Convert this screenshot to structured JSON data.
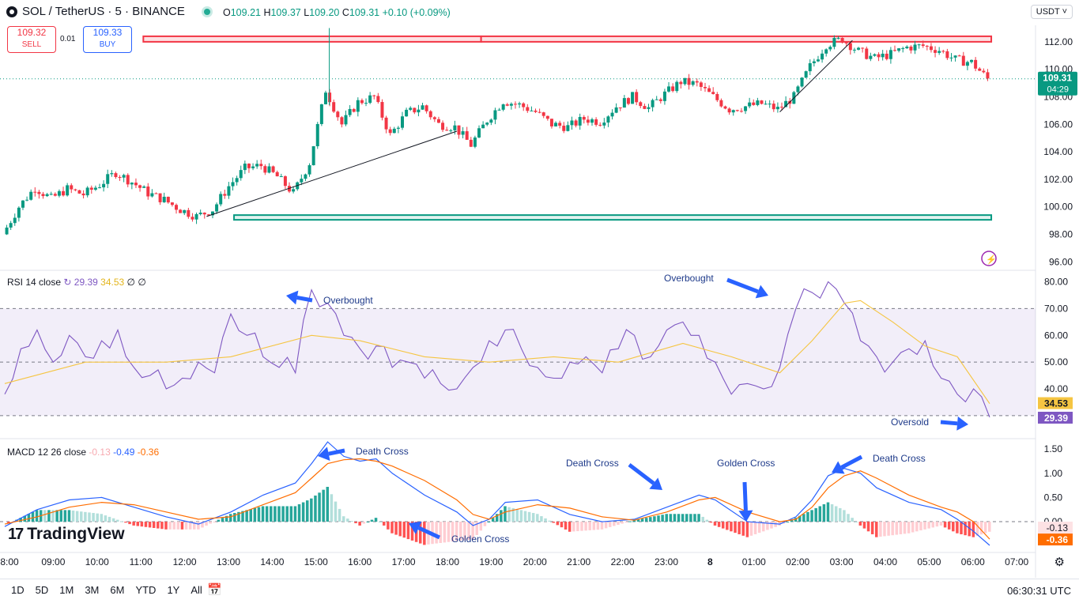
{
  "header": {
    "symbol": "SOL / TetherUS · 5 · BINANCE",
    "o_label": "O",
    "o": "109.21",
    "h_label": "H",
    "h": "109.37",
    "l_label": "L",
    "l": "109.20",
    "c_label": "C",
    "c": "109.31",
    "change": "+0.10 (+0.09%)",
    "currency": "USDT ˅"
  },
  "trade": {
    "sell_price": "109.32",
    "sell_label": "SELL",
    "spread": "0.01",
    "buy_price": "109.33",
    "buy_label": "BUY"
  },
  "price_tag": {
    "price": "109.31",
    "countdown": "04:29"
  },
  "rsi_header": {
    "title": "RSI 14 close",
    "rsi": "29.39",
    "ma": "34.53",
    "extra": "∅ ∅"
  },
  "macd_header": {
    "title": "MACD 12 26 close",
    "hist": "-0.13",
    "macd": "-0.49",
    "signal": "-0.36"
  },
  "logo": "TradingView",
  "ranges": [
    "1D",
    "5D",
    "1M",
    "3M",
    "6M",
    "YTD",
    "1Y",
    "All"
  ],
  "clock": "06:30:31 UTC",
  "colors": {
    "up": "#089981",
    "down": "#f23645",
    "rsi": "#7e57c2",
    "rsi_ma": "#f5c542",
    "macd": "#2962ff",
    "signal": "#ff6d00",
    "annotation": "#2962ff"
  },
  "chart_data": {
    "type": "candlestick",
    "price_axis": {
      "ticks": [
        "112.00",
        "110.00",
        "108.00",
        "106.00",
        "104.00",
        "102.00",
        "100.00",
        "98.00",
        "96.00"
      ],
      "ylim": [
        95.5,
        113.2
      ]
    },
    "time_axis": [
      "8:00",
      "09:00",
      "10:00",
      "11:00",
      "12:00",
      "13:00",
      "14:00",
      "15:00",
      "16:00",
      "17:00",
      "18:00",
      "19:00",
      "20:00",
      "21:00",
      "22:00",
      "23:00",
      "8",
      "01:00",
      "02:00",
      "03:00",
      "04:00",
      "05:00",
      "06:00",
      "07:00"
    ],
    "price_path": [
      [
        0,
        98.0
      ],
      [
        1,
        100.0
      ],
      [
        2,
        101.4
      ],
      [
        3,
        100.6
      ],
      [
        4,
        101.3
      ],
      [
        5,
        100.9
      ],
      [
        6,
        101.6
      ],
      [
        7,
        102.5
      ],
      [
        8,
        101.8
      ],
      [
        9,
        101.0
      ],
      [
        10,
        100.5
      ],
      [
        11,
        99.8
      ],
      [
        12,
        99.3
      ],
      [
        13,
        99.8
      ],
      [
        14,
        101.5
      ],
      [
        15,
        102.8
      ],
      [
        16,
        103.0
      ],
      [
        17,
        102.2
      ],
      [
        18,
        101.0
      ],
      [
        19,
        103.2
      ],
      [
        20,
        108.5
      ],
      [
        21,
        106.0
      ],
      [
        22,
        107.6
      ],
      [
        23,
        108.0
      ],
      [
        24,
        105.2
      ],
      [
        25,
        106.8
      ],
      [
        26,
        107.3
      ],
      [
        27,
        106.0
      ],
      [
        28,
        105.8
      ],
      [
        29,
        104.5
      ],
      [
        30,
        106.3
      ],
      [
        31,
        107.7
      ],
      [
        32,
        107.4
      ],
      [
        33,
        106.9
      ],
      [
        34,
        106.0
      ],
      [
        35,
        105.8
      ],
      [
        36,
        106.4
      ],
      [
        37,
        106.2
      ],
      [
        38,
        107.3
      ],
      [
        39,
        108.0
      ],
      [
        40,
        107.2
      ],
      [
        41,
        108.2
      ],
      [
        42,
        109.1
      ],
      [
        43,
        108.9
      ],
      [
        44,
        108.0
      ],
      [
        45,
        107.1
      ],
      [
        46,
        107.3
      ],
      [
        47,
        107.5
      ],
      [
        48,
        107.1
      ],
      [
        49,
        108.0
      ],
      [
        50,
        110.2
      ],
      [
        51,
        111.8
      ],
      [
        52,
        112.2
      ],
      [
        53,
        111.3
      ],
      [
        54,
        110.8
      ],
      [
        55,
        111.1
      ],
      [
        56,
        111.6
      ],
      [
        57,
        111.7
      ],
      [
        58,
        111.4
      ],
      [
        59,
        110.7
      ],
      [
        60,
        110.5
      ],
      [
        61,
        109.3
      ]
    ],
    "levels": [
      {
        "name": "resistance",
        "low": 112.0,
        "high": 112.4
      },
      {
        "name": "support",
        "low": 99.1,
        "high": 99.4
      }
    ],
    "trendlines": [
      {
        "from": [
          12.5,
          99.3
        ],
        "to": [
          28.0,
          105.5
        ]
      },
      {
        "from": [
          48.0,
          106.9
        ],
        "to": [
          52.5,
          112.1
        ]
      }
    ],
    "current_price": 109.31,
    "rsi": {
      "ticks": [
        "80.00",
        "70.00",
        "60.00",
        "50.00",
        "40.00"
      ],
      "band": [
        30,
        70
      ],
      "ylim": [
        22,
        84
      ],
      "values": [
        [
          0,
          38
        ],
        [
          1,
          55
        ],
        [
          2,
          62
        ],
        [
          3,
          50
        ],
        [
          4,
          60
        ],
        [
          5,
          52
        ],
        [
          6,
          58
        ],
        [
          7,
          62
        ],
        [
          8,
          48
        ],
        [
          9,
          45
        ],
        [
          10,
          40
        ],
        [
          11,
          44
        ],
        [
          12,
          50
        ],
        [
          13,
          46
        ],
        [
          14,
          68
        ],
        [
          15,
          60
        ],
        [
          16,
          52
        ],
        [
          17,
          48
        ],
        [
          18,
          46
        ],
        [
          19,
          77
        ],
        [
          20,
          72
        ],
        [
          21,
          60
        ],
        [
          22,
          55
        ],
        [
          23,
          56
        ],
        [
          24,
          48
        ],
        [
          25,
          50
        ],
        [
          26,
          44
        ],
        [
          27,
          42
        ],
        [
          28,
          40
        ],
        [
          29,
          48
        ],
        [
          30,
          58
        ],
        [
          31,
          62
        ],
        [
          32,
          55
        ],
        [
          33,
          48
        ],
        [
          34,
          44
        ],
        [
          35,
          50
        ],
        [
          36,
          52
        ],
        [
          37,
          46
        ],
        [
          38,
          55
        ],
        [
          39,
          60
        ],
        [
          40,
          52
        ],
        [
          41,
          62
        ],
        [
          42,
          65
        ],
        [
          43,
          60
        ],
        [
          44,
          50
        ],
        [
          45,
          38
        ],
        [
          46,
          42
        ],
        [
          47,
          40
        ],
        [
          48,
          48
        ],
        [
          49,
          70
        ],
        [
          50,
          76
        ],
        [
          51,
          80
        ],
        [
          52,
          72
        ],
        [
          53,
          58
        ],
        [
          54,
          52
        ],
        [
          55,
          50
        ],
        [
          56,
          55
        ],
        [
          57,
          58
        ],
        [
          58,
          44
        ],
        [
          59,
          38
        ],
        [
          60,
          40
        ],
        [
          61,
          29.4
        ]
      ],
      "ma_values": [
        [
          0,
          42
        ],
        [
          5,
          50
        ],
        [
          10,
          50
        ],
        [
          14,
          52
        ],
        [
          19,
          60
        ],
        [
          22,
          58
        ],
        [
          26,
          52
        ],
        [
          30,
          50
        ],
        [
          34,
          52
        ],
        [
          38,
          50
        ],
        [
          42,
          57
        ],
        [
          45,
          52
        ],
        [
          48,
          46
        ],
        [
          50,
          58
        ],
        [
          52,
          72
        ],
        [
          53,
          73
        ],
        [
          55,
          65
        ],
        [
          57,
          56
        ],
        [
          59,
          52
        ],
        [
          61,
          34.5
        ]
      ]
    },
    "macd": {
      "ticks": [
        "1.50",
        "1.00",
        "0.50",
        "0.00"
      ],
      "ylim": [
        -0.62,
        1.7
      ],
      "macd_values": [
        [
          0,
          -0.1
        ],
        [
          2,
          0.25
        ],
        [
          4,
          0.45
        ],
        [
          6,
          0.5
        ],
        [
          8,
          0.3
        ],
        [
          10,
          0.1
        ],
        [
          12,
          -0.05
        ],
        [
          14,
          0.2
        ],
        [
          16,
          0.55
        ],
        [
          18,
          0.8
        ],
        [
          19,
          1.2
        ],
        [
          20,
          1.65
        ],
        [
          21,
          1.35
        ],
        [
          22,
          1.25
        ],
        [
          23,
          1.3
        ],
        [
          24,
          1.0
        ],
        [
          26,
          0.55
        ],
        [
          28,
          0.2
        ],
        [
          29,
          -0.08
        ],
        [
          30,
          0.05
        ],
        [
          31,
          0.4
        ],
        [
          33,
          0.45
        ],
        [
          35,
          0.15
        ],
        [
          37,
          0.0
        ],
        [
          39,
          0.05
        ],
        [
          41,
          0.3
        ],
        [
          43,
          0.55
        ],
        [
          44,
          0.45
        ],
        [
          46,
          0.0
        ],
        [
          48,
          -0.05
        ],
        [
          49,
          0.1
        ],
        [
          50,
          0.45
        ],
        [
          51,
          0.95
        ],
        [
          52,
          1.1
        ],
        [
          53,
          1.0
        ],
        [
          54,
          0.7
        ],
        [
          56,
          0.4
        ],
        [
          58,
          0.25
        ],
        [
          59,
          0.05
        ],
        [
          60,
          -0.2
        ],
        [
          61,
          -0.49
        ]
      ],
      "signal_values": [
        [
          0,
          -0.05
        ],
        [
          2,
          0.1
        ],
        [
          4,
          0.3
        ],
        [
          6,
          0.4
        ],
        [
          8,
          0.35
        ],
        [
          10,
          0.2
        ],
        [
          12,
          0.05
        ],
        [
          14,
          0.1
        ],
        [
          16,
          0.35
        ],
        [
          18,
          0.6
        ],
        [
          19,
          0.9
        ],
        [
          20,
          1.2
        ],
        [
          21,
          1.28
        ],
        [
          22,
          1.3
        ],
        [
          23,
          1.25
        ],
        [
          24,
          1.15
        ],
        [
          26,
          0.85
        ],
        [
          28,
          0.45
        ],
        [
          29,
          0.15
        ],
        [
          30,
          0.05
        ],
        [
          31,
          0.2
        ],
        [
          33,
          0.35
        ],
        [
          35,
          0.28
        ],
        [
          37,
          0.1
        ],
        [
          39,
          0.03
        ],
        [
          41,
          0.2
        ],
        [
          43,
          0.45
        ],
        [
          44,
          0.5
        ],
        [
          46,
          0.2
        ],
        [
          48,
          0.0
        ],
        [
          49,
          0.05
        ],
        [
          50,
          0.3
        ],
        [
          51,
          0.7
        ],
        [
          52,
          0.95
        ],
        [
          53,
          1.05
        ],
        [
          54,
          0.9
        ],
        [
          56,
          0.55
        ],
        [
          58,
          0.3
        ],
        [
          59,
          0.2
        ],
        [
          60,
          0.0
        ],
        [
          61,
          -0.36
        ]
      ],
      "current": {
        "macd": -0.49,
        "signal": -0.36,
        "hist": -0.13
      }
    },
    "annotations": [
      {
        "text": "Overbought",
        "pane": "rsi",
        "arrow_to": [
          19,
          77
        ]
      },
      {
        "text": "Overbought",
        "pane": "rsi",
        "arrow_to": [
          50,
          76
        ]
      },
      {
        "text": "Oversold",
        "pane": "rsi",
        "arrow_to": [
          61,
          30
        ]
      },
      {
        "text": "Death Cross",
        "pane": "macd",
        "arrow_to": [
          22,
          1.3
        ]
      },
      {
        "text": "Golden Cross",
        "pane": "macd",
        "arrow_to": [
          28.5,
          0.0
        ]
      },
      {
        "text": "Death Cross",
        "pane": "macd",
        "arrow_to": [
          43.5,
          0.5
        ]
      },
      {
        "text": "Golden Cross",
        "pane": "macd",
        "arrow_to": [
          48.5,
          0.0
        ]
      },
      {
        "text": "Death Cross",
        "pane": "macd",
        "arrow_to": [
          53,
          1.05
        ]
      }
    ]
  }
}
